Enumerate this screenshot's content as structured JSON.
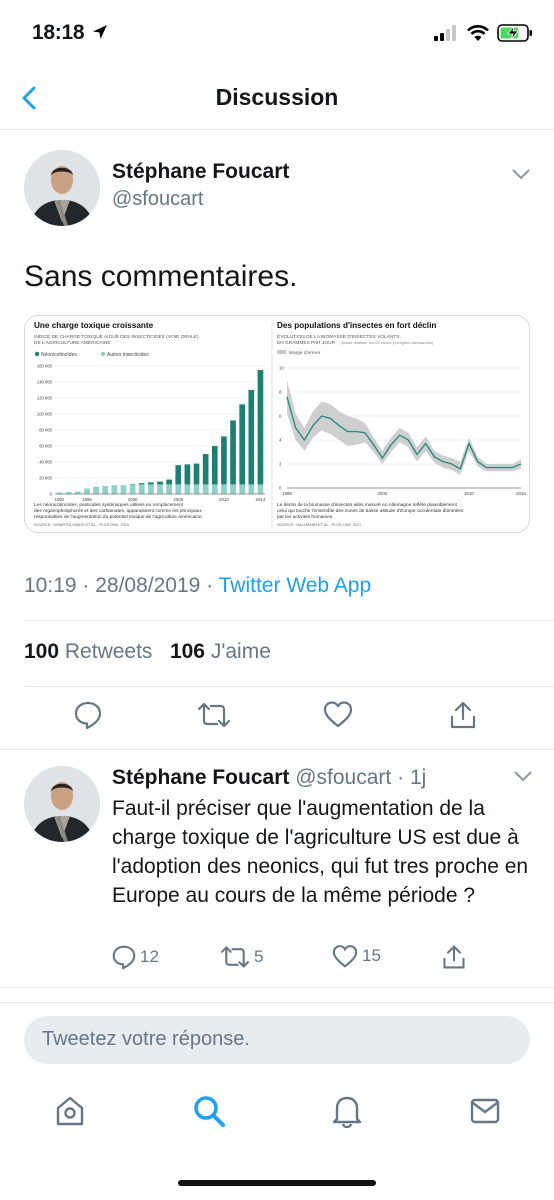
{
  "status_bar": {
    "time": "18:18"
  },
  "nav": {
    "title": "Discussion"
  },
  "tweet": {
    "author_name": "Stéphane Foucart",
    "author_handle": "@sfoucart",
    "text": "Sans commentaires.",
    "time": "10:19",
    "date": "28/08/2019",
    "source": "Twitter Web App",
    "retweets_count": "100",
    "retweets_label": "Retweets",
    "likes_count": "106",
    "likes_label": "J'aime"
  },
  "media": {
    "left": {
      "title": "Une charge toxique croissante",
      "subtitle1": "INDICE DE CHARGE TOXIQUE AIGUË DES INSECTICIDES (VOIE ORALE)",
      "subtitle2": "DE L'AGRICULTURE AMÉRICAINE",
      "legend_a": "Néonicotinoïdes",
      "legend_b": "Autres insecticides",
      "caption1": "Les néonicotinoïdes, pesticides systémiques utilisés en remplacement",
      "caption2": "des organophosphorés et des carbamates, apparaissent comme les principaux",
      "caption3": "responsables de l'augmentation du potentiel toxique de l'agriculture américaine.",
      "source": "SOURCE : DIBARTOLOMEIS ET AL., PLOS ONE, 2019"
    },
    "right": {
      "title": "Des populations d'insectes en fort déclin",
      "subtitle1": "ÉVOLUTION DE LA BIOMASSE D'INSECTES VOLANTS,",
      "subtitle2": "EN GRAMMES PAR JOUR",
      "subtitle_note": "(étude réalisée sur 63 zones protégées allemandes)",
      "legend": "Marge d'erreur",
      "caption1": "Le déclin de la biomasse d'insectes ailés mesuré en Allemagne reflète plausiblement",
      "caption2": "celui qui touche l'ensemble des zones de basse altitude d'Europe occidentale dominées",
      "caption3": "par les activités humaines.",
      "source": "SOURCE : HALLMANN ET AL., PLOS ONE, 2017"
    }
  },
  "chart_data": [
    {
      "type": "bar",
      "title": "Une charge toxique croissante",
      "x_tick_labels": [
        "1992",
        "1995",
        "2000",
        "2005",
        "2010",
        "2014"
      ],
      "y_tick_labels": [
        "0",
        "20 000",
        "40 000",
        "60 000",
        "80 000",
        "100 000",
        "120 000",
        "140 000",
        "160 000"
      ],
      "ylim": [
        0,
        160000
      ],
      "categories": [
        "1992",
        "1993",
        "1994",
        "1995",
        "1996",
        "1997",
        "1998",
        "1999",
        "2000",
        "2001",
        "2002",
        "2003",
        "2004",
        "2005",
        "2006",
        "2007",
        "2008",
        "2009",
        "2010",
        "2011",
        "2012",
        "2013",
        "2014"
      ],
      "series": [
        {
          "name": "Néonicotinoïdes",
          "color": "#1f7f73",
          "values": [
            0,
            0,
            0,
            0,
            0,
            0,
            0,
            0,
            500,
            1500,
            2500,
            3500,
            6000,
            24000,
            25000,
            26000,
            38000,
            48000,
            60000,
            80000,
            100000,
            118000,
            143000
          ]
        },
        {
          "name": "Autres insecticides",
          "color": "#8ed1cb",
          "values": [
            2000,
            2500,
            3000,
            7000,
            9000,
            10000,
            11000,
            11000,
            12000,
            12000,
            12000,
            12000,
            12000,
            12000,
            12000,
            12000,
            12000,
            12000,
            12000,
            12000,
            12000,
            12000,
            12000
          ]
        }
      ],
      "grid": true
    },
    {
      "type": "line",
      "title": "Des populations d'insectes en fort déclin",
      "x_tick_labels": [
        "1989",
        "2000",
        "2010",
        "2016"
      ],
      "y_tick_labels": [
        "0",
        "2",
        "4",
        "6",
        "8",
        "10"
      ],
      "ylim": [
        0,
        10
      ],
      "x": [
        1989,
        1990,
        1991,
        1992,
        1993,
        1994,
        1995,
        1996,
        1997,
        1998,
        1999,
        2000,
        2001,
        2002,
        2003,
        2004,
        2005,
        2006,
        2007,
        2008,
        2009,
        2010,
        2011,
        2012,
        2013,
        2014,
        2015,
        2016
      ],
      "series": [
        {
          "name": "biomasse",
          "color": "#2a8c80",
          "values": [
            7.6,
            5.0,
            4.0,
            5.2,
            6.0,
            5.8,
            5.2,
            4.7,
            4.7,
            4.6,
            3.6,
            2.5,
            3.6,
            4.4,
            4.0,
            2.8,
            3.7,
            2.6,
            2.2,
            2.0,
            1.6,
            3.7,
            2.2,
            1.7,
            1.7,
            1.7,
            1.7,
            2.0
          ]
        }
      ],
      "band": {
        "name": "Marge d'erreur",
        "upper": [
          9.0,
          6.2,
          5.0,
          6.4,
          7.2,
          7.0,
          6.4,
          6.0,
          5.8,
          5.4,
          4.2,
          3.1,
          4.2,
          5.0,
          4.6,
          3.4,
          4.3,
          3.1,
          2.7,
          2.5,
          2.2,
          4.2,
          2.6,
          2.0,
          2.0,
          2.0,
          2.0,
          2.4
        ],
        "lower": [
          6.2,
          4.0,
          3.1,
          4.2,
          4.8,
          4.5,
          4.0,
          3.5,
          3.6,
          3.8,
          3.0,
          2.0,
          3.0,
          3.8,
          3.4,
          2.2,
          3.1,
          2.1,
          1.7,
          1.5,
          1.1,
          3.1,
          1.8,
          1.4,
          1.4,
          1.4,
          1.4,
          1.6
        ]
      },
      "grid": true
    }
  ],
  "reply": {
    "author_name": "Stéphane Foucart",
    "author_handle": "@sfoucart",
    "time_sep": "·",
    "time_ago": "1j",
    "text": "Faut-il préciser que l'augmentation de la charge toxique de l'agriculture US est due à l'adoption des neonics, qui fut tres proche en Europe au cours de la même période ?",
    "reply_count": "12",
    "retweet_count": "5",
    "like_count": "15"
  },
  "compose": {
    "placeholder": "Tweetez votre réponse."
  },
  "colors": {
    "accent": "#1da1f2",
    "muted": "#657786",
    "chart_teal": "#1f7f73"
  }
}
